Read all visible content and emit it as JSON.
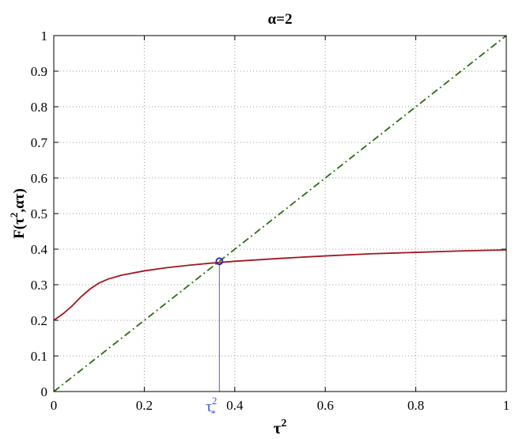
{
  "chart_data": {
    "type": "line",
    "title": "α=2",
    "xlabel": "τ²",
    "ylabel": "F(τ², ατ)",
    "xlim": [
      0,
      1
    ],
    "ylim": [
      0,
      1
    ],
    "xticks": [
      "0",
      "0.2",
      "0.4",
      "0.6",
      "0.8",
      "1"
    ],
    "xtick_values": [
      0,
      0.2,
      0.4,
      0.6,
      0.8,
      1
    ],
    "yticks": [
      "0",
      "0.1",
      "0.2",
      "0.3",
      "0.4",
      "0.5",
      "0.6",
      "0.7",
      "0.8",
      "0.9",
      "1"
    ],
    "ytick_values": [
      0,
      0.1,
      0.2,
      0.3,
      0.4,
      0.5,
      0.6,
      0.7,
      0.8,
      0.9,
      1
    ],
    "grid": true,
    "series": [
      {
        "color": "#a01820",
        "style": "solid",
        "x": [
          0,
          0.02,
          0.04,
          0.06,
          0.08,
          0.1,
          0.12,
          0.15,
          0.2,
          0.25,
          0.3,
          0.35,
          0.4,
          0.5,
          0.6,
          0.7,
          0.8,
          0.9,
          1.0
        ],
        "y": [
          0.2,
          0.218,
          0.24,
          0.266,
          0.288,
          0.305,
          0.316,
          0.327,
          0.339,
          0.348,
          0.355,
          0.361,
          0.366,
          0.374,
          0.381,
          0.387,
          0.391,
          0.395,
          0.398
        ]
      },
      {
        "color": "#2e6b12",
        "style": "dashdot",
        "x": [
          0,
          1
        ],
        "y": [
          0,
          1
        ]
      }
    ],
    "marker": {
      "x": 0.366,
      "y": 0.366,
      "color": "#2a2aa8"
    },
    "marker_drop_line_color": "#5a7ee8",
    "annotation": {
      "text": "τ",
      "sup": "2",
      "sub": "*",
      "color": "#3355dd"
    }
  }
}
